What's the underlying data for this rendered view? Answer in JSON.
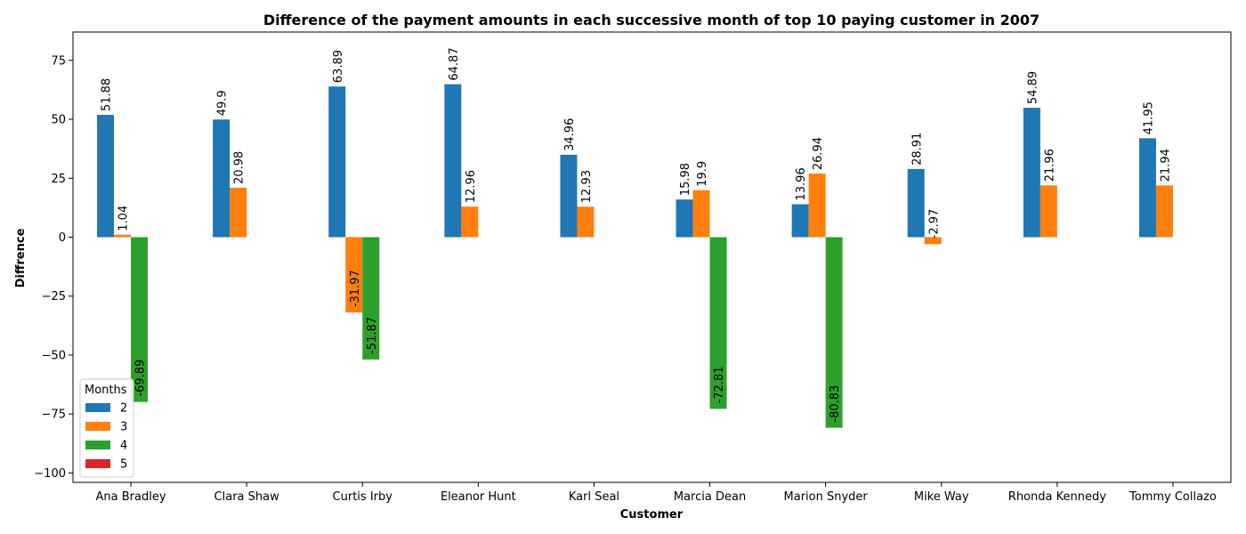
{
  "chart_data": {
    "type": "bar",
    "title": "Difference of the payment amounts in each successive month of top 10 paying customer in 2007",
    "xlabel": "Customer",
    "ylabel": "Diffrence",
    "ylim": [
      -104,
      87
    ],
    "yticks": [
      75,
      50,
      25,
      0,
      -25,
      -50,
      -75,
      -100
    ],
    "grid": false,
    "legend_title": "Months",
    "legend_position": "lower-left",
    "categories": [
      "Ana Bradley",
      "Clara Shaw",
      "Curtis Irby",
      "Eleanor Hunt",
      "Karl Seal",
      "Marcia Dean",
      "Marion Snyder",
      "Mike Way",
      "Rhonda Kennedy",
      "Tommy Collazo"
    ],
    "series": [
      {
        "name": "2",
        "color": "#1f77b4",
        "values": [
          51.88,
          49.9,
          63.89,
          64.87,
          34.96,
          15.98,
          13.96,
          28.91,
          54.89,
          41.95
        ]
      },
      {
        "name": "3",
        "color": "#ff7f0e",
        "values": [
          1.04,
          20.98,
          -31.97,
          12.96,
          12.93,
          19.9,
          26.94,
          -2.97,
          21.96,
          21.94
        ]
      },
      {
        "name": "4",
        "color": "#2ca02c",
        "values": [
          -69.89,
          null,
          -51.87,
          null,
          null,
          -72.81,
          -80.83,
          null,
          null,
          null
        ]
      },
      {
        "name": "5",
        "color": "#d62728",
        "values": [
          null,
          null,
          null,
          null,
          null,
          null,
          null,
          null,
          null,
          null
        ]
      }
    ]
  }
}
